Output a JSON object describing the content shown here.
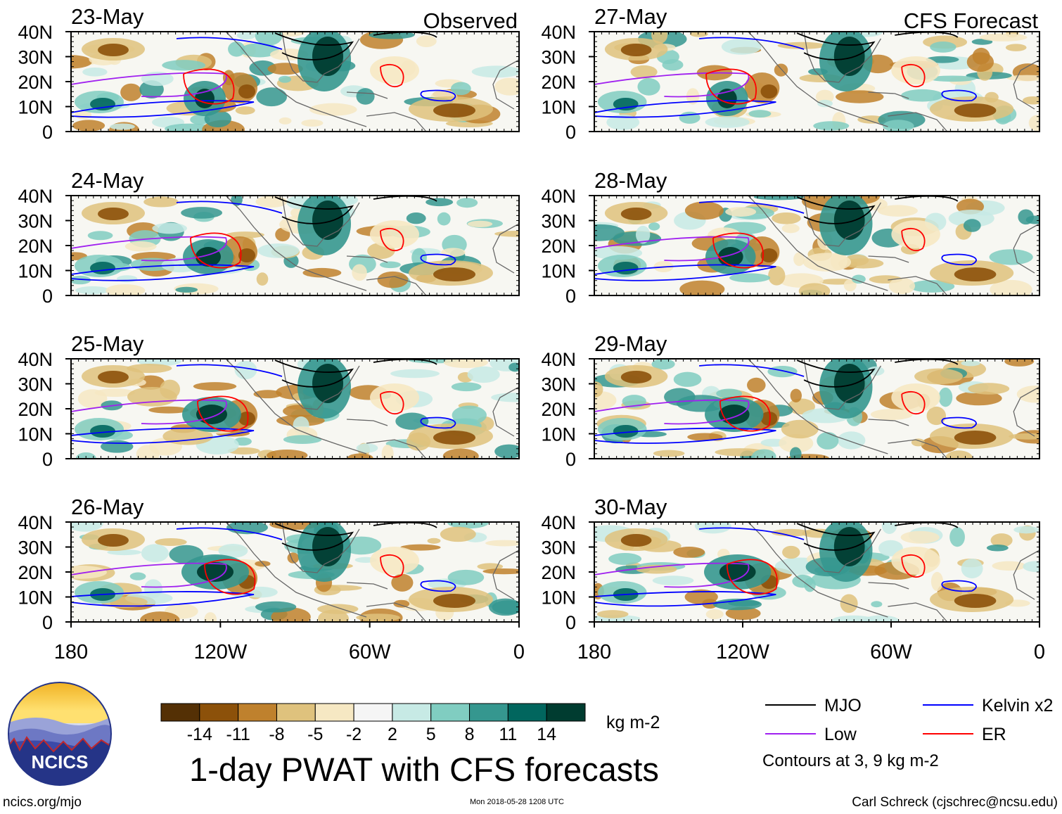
{
  "panels": [
    {
      "date": "23-May",
      "label": "Observed",
      "column": "left",
      "row": 0
    },
    {
      "date": "24-May",
      "label": "",
      "column": "left",
      "row": 1
    },
    {
      "date": "25-May",
      "label": "",
      "column": "left",
      "row": 2
    },
    {
      "date": "26-May",
      "label": "",
      "column": "left",
      "row": 3
    },
    {
      "date": "27-May",
      "label": "CFS Forecast",
      "column": "right",
      "row": 0
    },
    {
      "date": "28-May",
      "label": "",
      "column": "right",
      "row": 1
    },
    {
      "date": "29-May",
      "label": "",
      "column": "right",
      "row": 2
    },
    {
      "date": "30-May",
      "label": "",
      "column": "right",
      "row": 3
    }
  ],
  "axes": {
    "lat_ticks": [
      "40N",
      "30N",
      "20N",
      "10N",
      "0"
    ],
    "lon_ticks": [
      "180",
      "120W",
      "60W",
      "0"
    ]
  },
  "colorbar": {
    "tick_labels": [
      "-14",
      "-11",
      "-8",
      "-5",
      "-2",
      "2",
      "5",
      "8",
      "11",
      "14"
    ],
    "colors": [
      "#543005",
      "#8c510a",
      "#bf812d",
      "#dfc27d",
      "#f6e8c3",
      "#f5f5f5",
      "#c7eae5",
      "#80cdc1",
      "#35978f",
      "#01665e",
      "#003c30"
    ],
    "units": "kg m-2"
  },
  "legend": {
    "items": [
      {
        "label": "MJO",
        "color": "#000000"
      },
      {
        "label": "Kelvin x2",
        "color": "#0000ff"
      },
      {
        "label": "Low",
        "color": "#a020f0"
      },
      {
        "label": "ER",
        "color": "#ff0000"
      }
    ],
    "note": "Contours at 3, 9 kg m-2"
  },
  "title": "1-day PWAT with CFS forecasts",
  "logo": {
    "text": "NCICS"
  },
  "footer": {
    "url": "ncics.org/mjo",
    "timestamp": "Mon 2018-05-28 1208 UTC",
    "author": "Carl Schreck (cjschrec@ncsu.edu)"
  }
}
